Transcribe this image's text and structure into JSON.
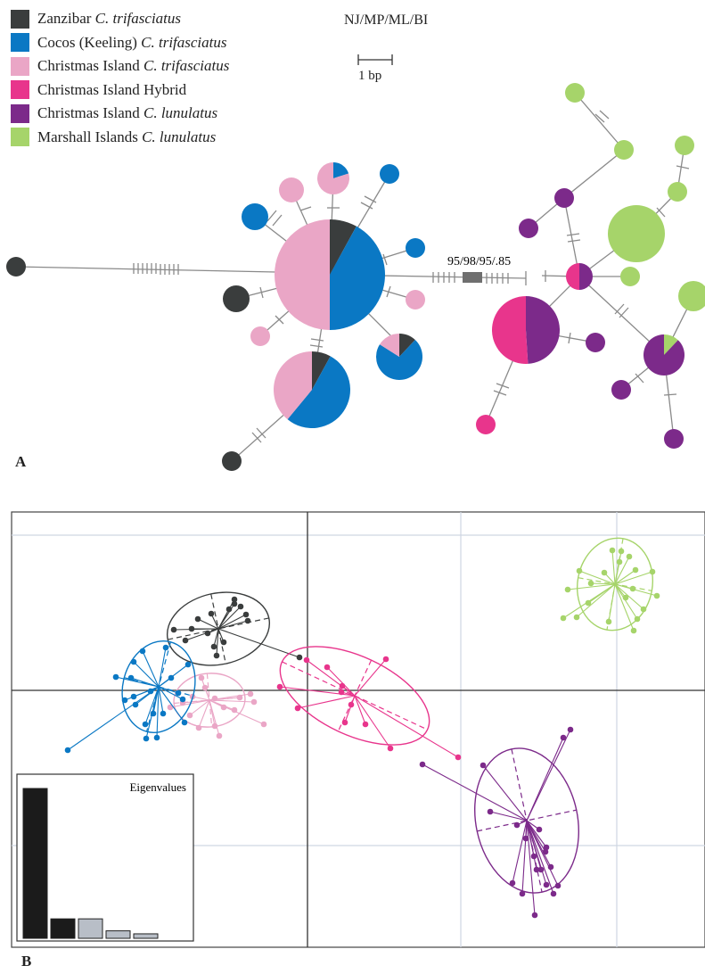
{
  "panel_a": {
    "legend": [
      {
        "plain": "Zanzibar ",
        "species": "C. trifasciatus",
        "color": "#3a3d3d"
      },
      {
        "plain": "Cocos (Keeling) ",
        "species": "C. trifasciatus",
        "color": "#0a78c4"
      },
      {
        "plain": "Christmas Island ",
        "species": "C. trifasciatus",
        "color": "#eaa6c6"
      },
      {
        "plain": "Christmas Island Hybrid",
        "species": "",
        "color": "#e8358c"
      },
      {
        "plain": "Christmas Island ",
        "species": "C. lunulatus",
        "color": "#7c2a8a"
      },
      {
        "plain": "Marshall Islands ",
        "species": "C. lunulatus",
        "color": "#a6d46a"
      }
    ],
    "support_methods": "NJ/MP/ML/BI",
    "scale_label": "1 bp",
    "node_support": "95/98/95/.85",
    "letter": "A"
  },
  "panel_b": {
    "eigenvalues_title": "Eigenvalues",
    "eigenvalues": [
      1.0,
      0.13,
      0.13,
      0.05,
      0.03
    ],
    "eigenvalues_retained": 2,
    "letter": "B"
  },
  "colors": {
    "zanzibar": "#3a3d3d",
    "cocos": "#0a78c4",
    "ci_trifasciatus": "#eaa6c6",
    "hybrid": "#e8358c",
    "ci_lunulatus": "#7c2a8a",
    "marshall": "#a6d46a",
    "line": "#8a8a8a",
    "axis": "#333333",
    "grid": "#cfd6e2"
  }
}
